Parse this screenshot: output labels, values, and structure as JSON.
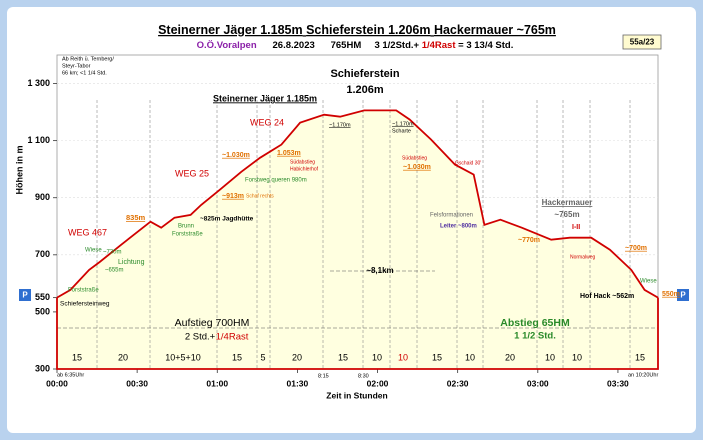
{
  "chart_data": {
    "type": "line",
    "title_parts": [
      "Steinerner Jäger 1.185m",
      "Schieferstein 1.206m",
      "Hackermauer ~765m"
    ],
    "subtitle_parts": [
      "O.Ö.Voralpen",
      "26.8.2023",
      "765HM",
      "3 1/2Std.+",
      "1/4Rast",
      "= 3 13/4 Std."
    ],
    "badge": "55a/23",
    "y_label": "Höhen in m",
    "x_label": "Zeit in Stunden",
    "x": [
      0,
      5,
      12,
      16,
      24,
      35,
      39,
      44,
      50,
      54,
      61,
      69,
      76,
      84,
      91,
      100,
      106,
      115,
      127,
      132,
      140,
      149,
      156,
      160,
      166,
      174,
      185,
      192,
      200,
      207,
      215,
      220,
      225
    ],
    "values": [
      550,
      577,
      647,
      675,
      735,
      816,
      795,
      830,
      840,
      875,
      928,
      991,
      1040,
      1086,
      1163,
      1191,
      1184,
      1206,
      1206,
      1174,
      1104,
      1016,
      981,
      805,
      823,
      795,
      753,
      760,
      760,
      718,
      647,
      577,
      550
    ],
    "color": "#d00000",
    "fill": "#ffffe0",
    "xlim": [
      0,
      225
    ],
    "ylim": [
      300,
      1400
    ],
    "yticks": [
      300,
      500,
      550,
      700,
      900,
      {
        "value": 1100,
        "label": "1 100"
      },
      {
        "value": 1300,
        "label": "1 300"
      }
    ],
    "xticks": [
      {
        "value": 0,
        "label": "00:00"
      },
      {
        "value": 30,
        "label": "00:30"
      },
      {
        "value": 60,
        "label": "01:00"
      },
      {
        "value": 90,
        "label": "01:30"
      },
      {
        "value": 120,
        "label": "02:00"
      },
      {
        "value": 150,
        "label": "02:30"
      },
      {
        "value": 180,
        "label": "03:00"
      },
      {
        "value": 210,
        "label": "03:30"
      }
    ],
    "segments": [
      "15",
      "20",
      "10+5+10",
      "15",
      "5",
      "20",
      "15",
      "10",
      "10",
      "15",
      "10",
      "20",
      "10",
      "10",
      "15"
    ],
    "parking": [
      "P",
      "P"
    ],
    "annotations": [
      "Ab Reith ü. Ternberg/",
      "Steyr-Tabor",
      "66 km; <1 1/4 Std.",
      "WEG 467",
      "Wiese",
      "~730m",
      "~655m",
      "Lichtung",
      "Forststraße",
      "Schiefersteinweg",
      "835m",
      "Brunn",
      "Forststraße",
      "~825m Jagdhütte",
      "WEG 25",
      "~913m",
      "Schaf rechts",
      "~1.030m",
      "1.053m",
      "Forstweg queren 980m",
      "Südabstieg",
      "Habichlerhof",
      "WEG 24",
      "Steinerner Jäger 1.185m",
      "~1.170m",
      "Schieferstein",
      "1.206m",
      "~1.170m",
      "Scharte",
      "Südabstieg",
      "Gschaid 30'",
      "~1.030m",
      "Felsformationen",
      "Leiter ~800m",
      "~770m",
      "Hackermauer",
      "~765m",
      "I-II",
      "Normalweg",
      "~700m",
      "Wiese",
      "Hof Hack ~562m",
      "550m",
      "~8,1km",
      "Aufstieg 700HM",
      "2 Std.+",
      "1/4Rast",
      "Abstieg 65HM",
      "1 1/2 Std.",
      "ab 6:35Uhr",
      "an 10:20Uhr",
      "8:15",
      "8:30"
    ]
  }
}
